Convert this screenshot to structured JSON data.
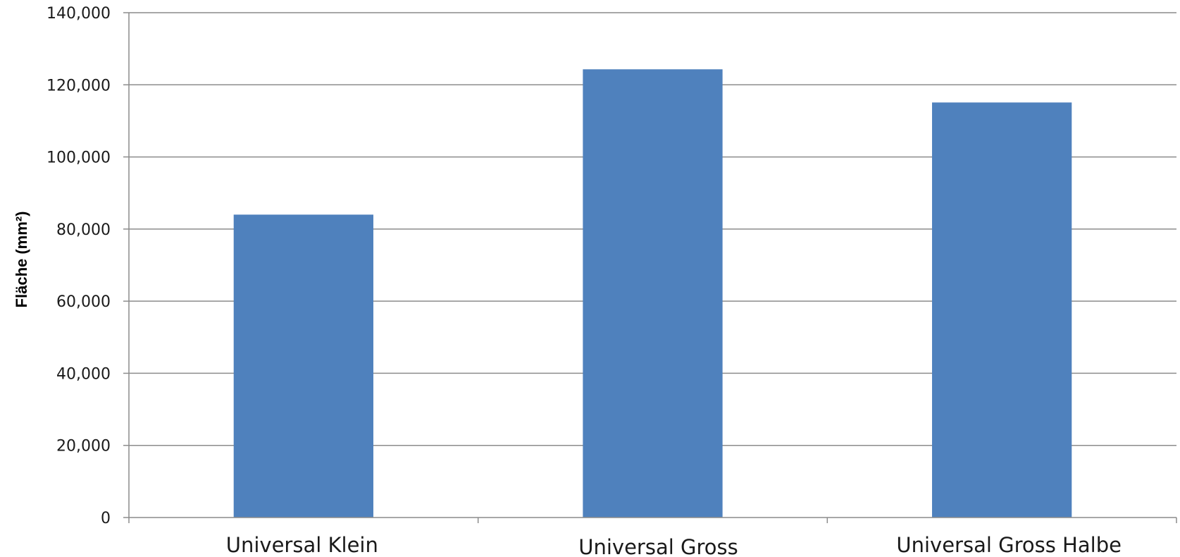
{
  "chart_data": {
    "type": "bar",
    "title": "",
    "xlabel": "",
    "ylabel": "Fläche (mm²)",
    "categories": [
      "Universal Klein",
      "Universal Gross",
      "Universal Gross Halbe"
    ],
    "values": [
      84000,
      124300,
      115100
    ],
    "ylim": [
      0,
      140000
    ],
    "yticks": [
      0,
      20000,
      40000,
      60000,
      80000,
      100000,
      120000,
      140000
    ],
    "ytick_labels": [
      "0",
      "20,000",
      "40,000",
      "60,000",
      "80,000",
      "100,000",
      "120,000",
      "140,000"
    ],
    "grid": true,
    "legend": "none",
    "colors": {
      "bar": "#4f81bd",
      "grid": "#8c8c8c"
    }
  }
}
